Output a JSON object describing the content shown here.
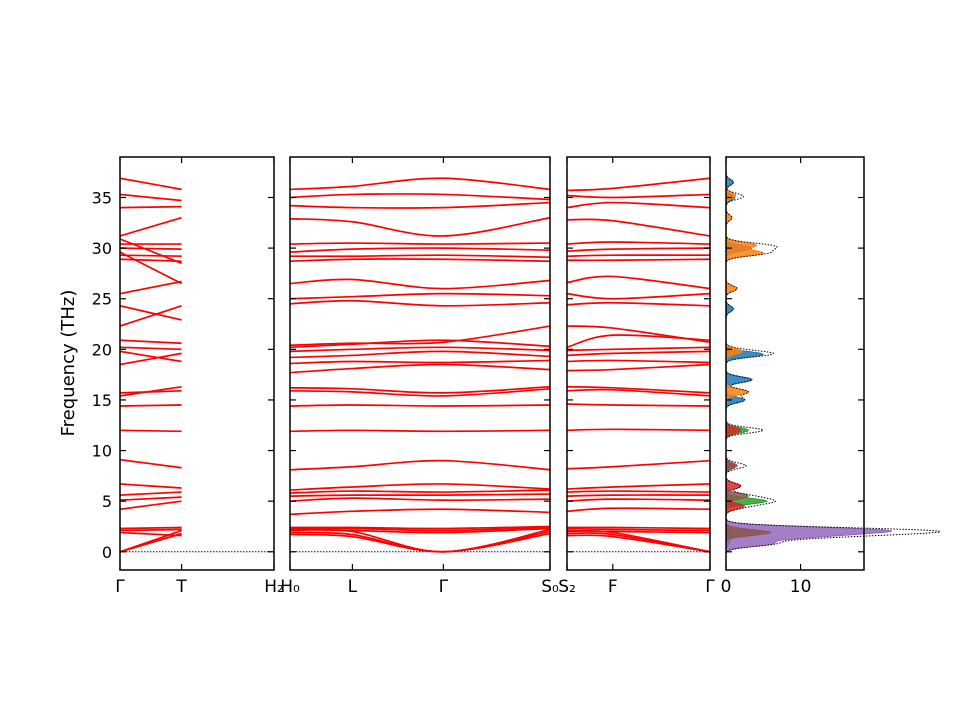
{
  "chart_data": {
    "type": "line",
    "title": "",
    "ylabel": "Frequency (THz)",
    "ylim": [
      -1.8,
      39
    ],
    "yticks": [
      0,
      5,
      10,
      15,
      20,
      25,
      30,
      35
    ],
    "band_color": "#ff0000",
    "panels": [
      {
        "name": "panel-gamma-t-h2",
        "xticks": [
          {
            "pos": 0,
            "label": "Γ"
          },
          {
            "pos": 0.4,
            "label": "T"
          },
          {
            "pos": 1,
            "label": "H₂"
          }
        ],
        "series": [
          {
            "values": [
              0,
              1.8
            ]
          },
          {
            "values": [
              0,
              1.8
            ]
          },
          {
            "values": [
              0,
              2.1
            ]
          },
          {
            "values": [
              1.9,
              1.6
            ]
          },
          {
            "values": [
              2.1,
              2.2
            ]
          },
          {
            "values": [
              2.3,
              2.4
            ]
          },
          {
            "values": [
              4.2,
              5.0
            ]
          },
          {
            "values": [
              5.1,
              5.4
            ]
          },
          {
            "values": [
              5.6,
              5.9
            ]
          },
          {
            "values": [
              6.7,
              6.3
            ]
          },
          {
            "values": [
              9.1,
              8.3
            ]
          },
          {
            "values": [
              12.0,
              11.9
            ]
          },
          {
            "values": [
              14.4,
              14.5
            ]
          },
          {
            "values": [
              15.4,
              16.3
            ]
          },
          {
            "values": [
              15.7,
              15.9
            ]
          },
          {
            "values": [
              18.5,
              19.6
            ]
          },
          {
            "values": [
              19.8,
              18.8
            ]
          },
          {
            "values": [
              20.2,
              20.0
            ]
          },
          {
            "values": [
              20.9,
              20.6
            ]
          },
          {
            "values": [
              22.3,
              24.3
            ]
          },
          {
            "values": [
              24.3,
              22.9
            ]
          },
          {
            "values": [
              25.5,
              26.7
            ]
          },
          {
            "values": [
              28.9,
              28.7
            ]
          },
          {
            "values": [
              29.3,
              29.2
            ]
          },
          {
            "values": [
              29.6,
              26.5
            ]
          },
          {
            "values": [
              30.0,
              29.9
            ]
          },
          {
            "values": [
              30.4,
              30.4
            ]
          },
          {
            "values": [
              30.9,
              28.5
            ]
          },
          {
            "values": [
              31.2,
              33.0
            ]
          },
          {
            "values": [
              34.0,
              34.1
            ]
          },
          {
            "values": [
              35.3,
              34.7
            ]
          },
          {
            "values": [
              36.9,
              35.8
            ]
          }
        ]
      },
      {
        "name": "panel-h0-l-gamma-s0",
        "xticks": [
          {
            "pos": 0,
            "label": "H₀"
          },
          {
            "pos": 0.24,
            "label": "L"
          },
          {
            "pos": 0.59,
            "label": "Γ"
          },
          {
            "pos": 1,
            "label": "S₀"
          }
        ],
        "series": [
          {
            "values": [
              1.7,
              1.5,
              0,
              1.8
            ]
          },
          {
            "values": [
              1.9,
              1.7,
              0,
              2.0
            ]
          },
          {
            "values": [
              2.1,
              2.0,
              0,
              2.2
            ]
          },
          {
            "values": [
              2.2,
              2.1,
              1.9,
              2.3
            ]
          },
          {
            "values": [
              2.3,
              2.3,
              2.1,
              2.4
            ]
          },
          {
            "values": [
              2.4,
              2.4,
              2.3,
              2.5
            ]
          },
          {
            "values": [
              3.7,
              4.0,
              4.2,
              3.9
            ]
          },
          {
            "values": [
              5.0,
              5.3,
              5.1,
              5.2
            ]
          },
          {
            "values": [
              5.5,
              5.6,
              5.6,
              5.7
            ]
          },
          {
            "values": [
              5.8,
              6.0,
              5.9,
              6.1
            ]
          },
          {
            "values": [
              6.1,
              6.4,
              6.7,
              6.2
            ]
          },
          {
            "values": [
              8.1,
              8.4,
              9.0,
              8.1
            ]
          },
          {
            "values": [
              11.9,
              12.0,
              11.9,
              12.0
            ]
          },
          {
            "values": [
              14.4,
              14.5,
              14.4,
              14.5
            ]
          },
          {
            "values": [
              15.9,
              15.8,
              15.4,
              16.1
            ]
          },
          {
            "values": [
              16.2,
              16.1,
              15.7,
              16.3
            ]
          },
          {
            "values": [
              17.7,
              18.1,
              18.5,
              18.0
            ]
          },
          {
            "values": [
              18.6,
              18.8,
              18.7,
              18.9
            ]
          },
          {
            "values": [
              19.2,
              19.4,
              19.8,
              19.3
            ]
          },
          {
            "values": [
              19.8,
              20.0,
              20.2,
              19.9
            ]
          },
          {
            "values": [
              20.2,
              20.5,
              20.9,
              20.3
            ]
          },
          {
            "values": [
              20.4,
              20.6,
              20.7,
              22.3
            ]
          },
          {
            "values": [
              24.5,
              24.8,
              24.3,
              24.6
            ]
          },
          {
            "values": [
              25.0,
              25.2,
              25.5,
              25.3
            ]
          },
          {
            "values": [
              26.5,
              26.9,
              26.0,
              26.8
            ]
          },
          {
            "values": [
              28.7,
              28.9,
              28.9,
              28.7
            ]
          },
          {
            "values": [
              29.2,
              29.2,
              29.3,
              29.1
            ]
          },
          {
            "values": [
              29.6,
              29.9,
              30.0,
              29.8
            ]
          },
          {
            "values": [
              30.4,
              30.5,
              30.4,
              30.5
            ]
          },
          {
            "values": [
              32.9,
              32.6,
              31.2,
              33.0
            ]
          },
          {
            "values": [
              34.2,
              34.0,
              34.0,
              34.5
            ]
          },
          {
            "values": [
              35.0,
              35.3,
              35.3,
              34.8
            ]
          },
          {
            "values": [
              35.8,
              36.1,
              36.9,
              35.8
            ]
          }
        ]
      },
      {
        "name": "panel-s2-f-gamma",
        "xticks": [
          {
            "pos": 0,
            "label": "S₂"
          },
          {
            "pos": 0.32,
            "label": "F"
          },
          {
            "pos": 1,
            "label": "Γ"
          }
        ],
        "series": [
          {
            "values": [
              1.6,
              1.5,
              0
            ]
          },
          {
            "values": [
              1.8,
              1.7,
              0
            ]
          },
          {
            "values": [
              2.0,
              1.9,
              0
            ]
          },
          {
            "values": [
              2.1,
              2.0,
              1.9
            ]
          },
          {
            "values": [
              2.3,
              2.2,
              2.1
            ]
          },
          {
            "values": [
              2.4,
              2.4,
              2.3
            ]
          },
          {
            "values": [
              4.0,
              4.3,
              4.2
            ]
          },
          {
            "values": [
              5.0,
              5.2,
              5.1
            ]
          },
          {
            "values": [
              5.5,
              5.6,
              5.6
            ]
          },
          {
            "values": [
              5.9,
              6.0,
              5.9
            ]
          },
          {
            "values": [
              6.2,
              6.4,
              6.7
            ]
          },
          {
            "values": [
              8.2,
              8.4,
              9.0
            ]
          },
          {
            "values": [
              12.0,
              12.1,
              12.0
            ]
          },
          {
            "values": [
              14.6,
              14.5,
              14.4
            ]
          },
          {
            "values": [
              15.9,
              16.0,
              15.4
            ]
          },
          {
            "values": [
              16.3,
              16.2,
              15.7
            ]
          },
          {
            "values": [
              17.9,
              18.0,
              18.5
            ]
          },
          {
            "values": [
              18.8,
              18.9,
              18.7
            ]
          },
          {
            "values": [
              19.4,
              19.6,
              19.8
            ]
          },
          {
            "values": [
              19.9,
              20.0,
              20.2
            ]
          },
          {
            "values": [
              20.2,
              21.4,
              20.9
            ]
          },
          {
            "values": [
              22.3,
              22.1,
              20.7
            ]
          },
          {
            "values": [
              24.4,
              24.6,
              24.3
            ]
          },
          {
            "values": [
              25.5,
              25.0,
              25.5
            ]
          },
          {
            "values": [
              26.6,
              27.2,
              26.0
            ]
          },
          {
            "values": [
              28.8,
              28.8,
              28.9
            ]
          },
          {
            "values": [
              29.2,
              29.3,
              29.3
            ]
          },
          {
            "values": [
              29.7,
              29.9,
              30.0
            ]
          },
          {
            "values": [
              30.4,
              30.6,
              30.4
            ]
          },
          {
            "values": [
              32.8,
              32.7,
              31.2
            ]
          },
          {
            "values": [
              34.0,
              34.5,
              34.0
            ]
          },
          {
            "values": [
              35.2,
              35.0,
              35.3
            ]
          },
          {
            "values": [
              35.7,
              35.9,
              36.9
            ]
          }
        ]
      }
    ],
    "dos_panel": {
      "name": "panel-dos",
      "xlim": [
        0,
        18.5
      ],
      "xticks": [
        {
          "pos": 0,
          "label": "0"
        },
        {
          "pos": 10,
          "label": "10"
        }
      ],
      "total_color": "#000000",
      "series": [
        {
          "color": "#1f77b4",
          "peaks": [
            [
              1.0,
              0.5
            ],
            [
              15.0,
              2.5
            ],
            [
              17.0,
              3.5
            ],
            [
              19.5,
              5.0
            ],
            [
              24.0,
              1.0
            ],
            [
              30.0,
              3.5
            ],
            [
              35.0,
              1.2
            ],
            [
              36.5,
              1.0
            ]
          ]
        },
        {
          "color": "#ff7f0e",
          "peaks": [
            [
              1.5,
              0.5
            ],
            [
              15.8,
              3.0
            ],
            [
              19.8,
              2.2
            ],
            [
              26.0,
              1.5
            ],
            [
              29.5,
              5.0
            ],
            [
              30.3,
              4.0
            ],
            [
              33.0,
              0.8
            ],
            [
              35.2,
              1.3
            ]
          ]
        },
        {
          "color": "#2ca02c",
          "peaks": [
            [
              1.4,
              0.8
            ],
            [
              5.0,
              5.5
            ],
            [
              12.0,
              3.0
            ]
          ]
        },
        {
          "color": "#d62728",
          "peaks": [
            [
              2.0,
              1.0
            ],
            [
              4.5,
              2.5
            ],
            [
              6.5,
              2.0
            ],
            [
              8.5,
              1.2
            ],
            [
              12.0,
              2.0
            ]
          ]
        },
        {
          "color": "#9467bd",
          "peaks": [
            [
              0.8,
              6.0
            ],
            [
              1.5,
              10.0
            ],
            [
              2.0,
              15.0
            ],
            [
              2.3,
              9.0
            ]
          ]
        },
        {
          "color": "#8c564b",
          "peaks": [
            [
              1.9,
              6.0
            ],
            [
              5.5,
              3.0
            ],
            [
              8.5,
              1.5
            ]
          ]
        }
      ]
    }
  }
}
